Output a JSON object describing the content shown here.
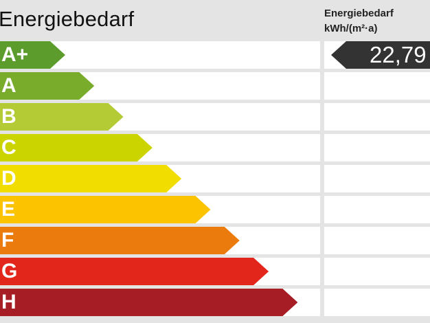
{
  "header": {
    "title": "Energiebedarf",
    "unit_line1": "Energiebedarf",
    "unit_line2": "kWh/(m²·a)"
  },
  "chart_data": {
    "type": "bar",
    "categories": [
      "A+",
      "A",
      "B",
      "C",
      "D",
      "E",
      "F",
      "G",
      "H"
    ],
    "colors": [
      "#5b9c2d",
      "#7aac2b",
      "#b4cb35",
      "#ccd400",
      "#f1dd00",
      "#fbc300",
      "#ec7b0e",
      "#e2261c",
      "#a61d26"
    ],
    "value": "22,79",
    "value_class": "A+",
    "marker_color": "#333333"
  }
}
